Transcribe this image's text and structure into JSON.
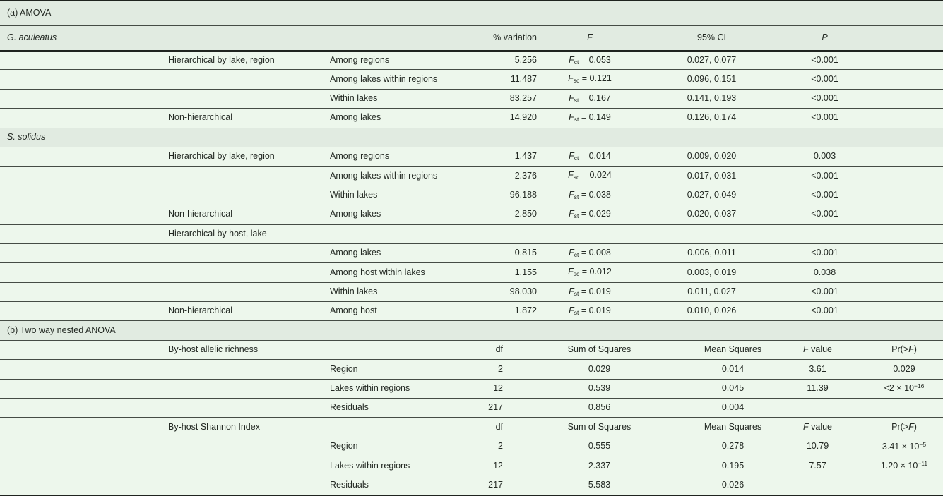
{
  "palette": {
    "band_bg": "#e1ebe1",
    "row_bg": "#edf7ec",
    "line": "#454c45",
    "strong_line": "#1f241f",
    "text": "#232923"
  },
  "table": {
    "rows": [
      {
        "kind": "band",
        "tall": true,
        "c1": "(a) AMOVA"
      },
      {
        "kind": "header_a",
        "c1": "*G. aculeatus*",
        "c4": "% variation",
        "c5": "*F*",
        "c6": "95% CI",
        "c7": "*P*"
      },
      {
        "kind": "a",
        "c2": "Hierarchical by lake, region",
        "c3": "Among regions",
        "c4": "5.256",
        "c5": "*F*_{ct} = 0.053",
        "c6": "0.027, 0.077",
        "c7": "<0.001"
      },
      {
        "kind": "a",
        "c3": "Among lakes within regions",
        "c4": "11.487",
        "c5": "*F*_{sc} = 0.121",
        "c6": "0.096, 0.151",
        "c7": "<0.001"
      },
      {
        "kind": "a",
        "c3": "Within lakes",
        "c4": "83.257",
        "c5": "*F*_{st} = 0.167",
        "c6": "0.141, 0.193",
        "c7": "<0.001"
      },
      {
        "kind": "a",
        "c2": "Non-hierarchical",
        "c3": "Among lakes",
        "c4": "14.920",
        "c5": "*F*_{st} = 0.149",
        "c6": "0.126, 0.174",
        "c7": "<0.001"
      },
      {
        "kind": "band",
        "c1": "*S. solidus*"
      },
      {
        "kind": "a",
        "c2": "Hierarchical by lake, region",
        "c3": "Among regions",
        "c4": "1.437",
        "c5": "*F*_{ct} = 0.014",
        "c6": "0.009, 0.020",
        "c7": "0.003"
      },
      {
        "kind": "a",
        "c3": "Among lakes within regions",
        "c4": "2.376",
        "c5": "*F*_{sc} = 0.024",
        "c6": "0.017, 0.031",
        "c7": "<0.001"
      },
      {
        "kind": "a",
        "c3": "Within lakes",
        "c4": "96.188",
        "c5": "*F*_{st} = 0.038",
        "c6": "0.027, 0.049",
        "c7": "<0.001"
      },
      {
        "kind": "a",
        "c2": "Non-hierarchical",
        "c3": "Among lakes",
        "c4": "2.850",
        "c5": "*F*_{st} = 0.029",
        "c6": "0.020, 0.037",
        "c7": "<0.001"
      },
      {
        "kind": "a",
        "c2": "Hierarchical by host, lake"
      },
      {
        "kind": "a",
        "c3": "Among lakes",
        "c4": "0.815",
        "c5": "*F*_{ct} = 0.008",
        "c6": "0.006, 0.011",
        "c7": "<0.001"
      },
      {
        "kind": "a",
        "c3": "Among host within lakes",
        "c4": "1.155",
        "c5": "*F*_{sc} = 0.012",
        "c6": "0.003, 0.019",
        "c7": "0.038"
      },
      {
        "kind": "a",
        "c3": "Within lakes",
        "c4": "98.030",
        "c5": "*F*_{st} = 0.019",
        "c6": "0.011, 0.027",
        "c7": "<0.001"
      },
      {
        "kind": "a",
        "c2": "Non-hierarchical",
        "c3": "Among host",
        "c4": "1.872",
        "c5": "*F*_{st} = 0.019",
        "c6": "0.010, 0.026",
        "c7": "<0.001"
      },
      {
        "kind": "band",
        "c1": "(b) Two way nested ANOVA"
      },
      {
        "kind": "b",
        "c2": "By-host allelic richness",
        "c4": "df",
        "c5": "Sum of Squares",
        "c6": "Mean Squares",
        "c7": "*F* value",
        "c8": "Pr(>*F*)"
      },
      {
        "kind": "b",
        "c3": "Region",
        "c4": "2",
        "c5": "0.029",
        "c6": "0.014",
        "c7": "3.61",
        "c8": "0.029"
      },
      {
        "kind": "b",
        "c3": "Lakes within regions",
        "c4": "12",
        "c5": "0.539",
        "c6": "0.045",
        "c7": "11.39",
        "c8": "<2 × 10^{−16}"
      },
      {
        "kind": "b",
        "c3": "Residuals",
        "c4": "217",
        "c5": "0.856",
        "c6": "0.004"
      },
      {
        "kind": "b",
        "c2": "By-host Shannon Index",
        "c4": "df",
        "c5": "Sum of Squares",
        "c6": "Mean Squares",
        "c7": "*F* value",
        "c8": "Pr(>*F*)"
      },
      {
        "kind": "b",
        "c3": "Region",
        "c4": "2",
        "c5": "0.555",
        "c6": "0.278",
        "c7": "10.79",
        "c8": "3.41 × 10^{−5}"
      },
      {
        "kind": "b",
        "c3": "Lakes within regions",
        "c4": "12",
        "c5": "2.337",
        "c6": "0.195",
        "c7": "7.57",
        "c8": "1.20 × 10^{−11}"
      },
      {
        "kind": "b",
        "c3": "Residuals",
        "c4": "217",
        "c5": "5.583",
        "c6": "0.026"
      }
    ]
  }
}
